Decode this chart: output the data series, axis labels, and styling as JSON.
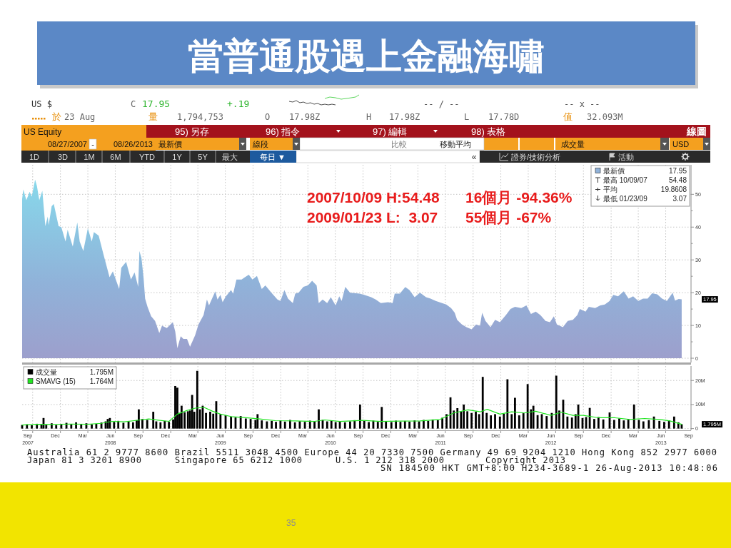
{
  "chart_data": [
    {
      "type": "other",
      "title": "當普通股遇上金融海嘯",
      "annotations": [
        "US $",
        "C",
        "17.95",
        "+.19",
        "-- / --",
        "-- x --",
        "於",
        "23 Aug",
        "量",
        "1,794,753",
        "O",
        "17.98Z",
        "H",
        "17.98Z",
        "L",
        "17.78D",
        "值",
        "32.093M",
        "US Equity",
        "95) 另存",
        "96) 指令",
        "97) 編輯",
        "98) 表格",
        "線圖",
        "08/27/2007",
        "-",
        "08/26/2013",
        "最新價",
        "線段",
        "比較",
        "移動平均",
        "成交量",
        "USD",
        "1D",
        "3D",
        "1M",
        "6M",
        "YTD",
        "1Y",
        "5Y",
        "最大",
        "每日 ▼",
        "«",
        "證券/技術分析",
        "活動"
      ]
    },
    {
      "type": "area",
      "x": [
        "2007-08-27",
        "2007-08-31",
        "2007-09-10",
        "2007-09-21",
        "2007-09-28",
        "2007-10-09",
        "2007-10-15",
        "2007-10-23",
        "2007-11-02",
        "2007-11-12",
        "2007-11-20",
        "2007-11-23",
        "2007-12-03",
        "2007-12-10",
        "2007-12-26",
        "2008-01-04",
        "2008-01-18",
        "2008-01-25",
        "2008-02-11",
        "2008-02-26",
        "2008-03-05",
        "2008-03-17",
        "2008-04-01",
        "2008-04-14",
        "2008-04-21",
        "2008-05-07",
        "2008-05-23",
        "2008-06-12",
        "2008-06-23",
        "2008-07-14",
        "2008-07-21",
        "2008-08-06",
        "2008-08-22",
        "2008-09-03",
        "2008-09-15",
        "2008-09-19",
        "2008-09-26",
        "2008-10-03",
        "2008-10-08",
        "2008-10-16",
        "2008-10-28",
        "2008-11-10",
        "2008-11-24",
        "2008-12-03",
        "2008-12-19",
        "2009-01-08",
        "2009-01-16",
        "2009-01-23",
        "2009-02-03",
        "2009-02-12",
        "2009-02-24",
        "2009-03-06",
        "2009-03-23",
        "2009-04-03",
        "2009-04-20",
        "2009-05-01",
        "2009-05-08",
        "2009-05-18",
        "2009-05-29",
        "2009-06-05",
        "2009-06-15",
        "2009-06-22",
        "2009-07-03",
        "2009-07-20",
        "2009-07-27",
        "2009-08-07",
        "2009-08-24",
        "2009-09-04",
        "2009-09-17",
        "2009-09-29",
        "2009-10-14",
        "2009-10-30",
        "2009-11-11",
        "2009-12-01",
        "2009-12-21",
        "2009-12-31",
        "2010-01-13",
        "2010-01-25",
        "2010-02-10",
        "2010-02-18",
        "2010-03-01",
        "2010-03-17",
        "2010-04-01",
        "2010-04-15",
        "2010-04-30",
        "2010-05-07",
        "2010-05-20",
        "2010-06-04",
        "2010-06-16",
        "2010-07-02",
        "2010-07-14",
        "2010-07-22",
        "2010-08-03",
        "2010-08-19",
        "2010-09-20",
        "2010-10-05",
        "2010-10-28",
        "2010-11-12",
        "2010-11-29",
        "2010-12-23",
        "2011-01-07",
        "2011-01-14",
        "2011-01-31",
        "2011-02-18",
        "2011-03-04",
        "2011-03-21",
        "2011-04-08",
        "2011-04-28",
        "2011-05-13",
        "2011-05-30",
        "2011-06-20",
        "2011-07-04",
        "2011-07-20",
        "2011-08-01",
        "2011-08-09",
        "2011-08-25",
        "2011-09-09",
        "2011-09-26",
        "2011-10-11",
        "2011-10-24",
        "2011-10-31",
        "2011-11-11",
        "2011-11-28",
        "2011-12-13",
        "2011-12-29",
        "2012-01-18",
        "2012-02-02",
        "2012-02-17",
        "2012-03-09",
        "2012-03-26",
        "2012-04-10",
        "2012-04-26",
        "2012-05-11",
        "2012-05-28",
        "2012-06-12",
        "2012-06-25",
        "2012-07-05",
        "2012-07-25",
        "2012-08-10",
        "2012-08-27",
        "2012-09-11",
        "2012-09-19",
        "2012-10-08",
        "2012-10-19",
        "2012-11-09",
        "2012-11-26",
        "2012-12-11",
        "2012-12-27",
        "2013-01-08",
        "2013-01-24",
        "2013-02-12",
        "2013-02-28",
        "2013-03-15",
        "2013-04-01",
        "2013-04-17",
        "2013-05-02",
        "2013-05-17",
        "2013-06-03",
        "2013-06-19",
        "2013-07-05",
        "2013-07-24",
        "2013-08-01",
        "2013-08-13",
        "2013-08-23"
      ],
      "series": [
        {
          "name": "最新價",
          "color": "#90b2d9",
          "values": [
            48.6,
            51.5,
            48.2,
            50.8,
            49.3,
            54.48,
            52.6,
            48.2,
            51.1,
            40.3,
            43.2,
            40.6,
            46.4,
            47.1,
            40.3,
            40.0,
            35.6,
            39.2,
            34.1,
            41.4,
            35.6,
            32.7,
            39.6,
            35.6,
            38.5,
            37.4,
            31.6,
            24.7,
            26.5,
            21.1,
            27.6,
            29.4,
            24.0,
            26.2,
            21.8,
            32.7,
            30.5,
            24.4,
            18.2,
            15.7,
            12.8,
            11.4,
            7.7,
            9.9,
            9.2,
            11.0,
            8.1,
            3.07,
            6.7,
            5.9,
            5.9,
            3.5,
            7.0,
            10.3,
            13.2,
            17.9,
            16.1,
            18.2,
            20.4,
            17.9,
            19.3,
            17.1,
            18.9,
            20.8,
            19.7,
            24.0,
            24.0,
            24.7,
            25.5,
            24.0,
            25.1,
            21.1,
            22.2,
            20.0,
            17.9,
            17.5,
            20.8,
            18.2,
            16.8,
            19.7,
            20.0,
            21.8,
            22.2,
            23.6,
            22.2,
            16.8,
            17.9,
            16.8,
            18.6,
            16.1,
            18.9,
            17.5,
            21.8,
            20.0,
            19.7,
            19.3,
            18.6,
            17.9,
            16.8,
            17.1,
            16.8,
            19.7,
            19.7,
            21.7,
            20.8,
            18.6,
            20.0,
            18.6,
            18.2,
            17.5,
            16.8,
            16.4,
            15.3,
            13.9,
            11.7,
            10.3,
            9.5,
            8.8,
            10.3,
            9.9,
            13.9,
            11.4,
            9.5,
            11.7,
            11.0,
            13.2,
            15.0,
            15.7,
            15.3,
            16.1,
            13.5,
            14.2,
            13.2,
            11.4,
            11.0,
            12.8,
            10.3,
            9.5,
            11.4,
            11.7,
            13.2,
            15.0,
            14.2,
            15.7,
            15.3,
            16.1,
            16.4,
            17.5,
            19.3,
            18.9,
            20.4,
            18.2,
            18.9,
            17.5,
            18.2,
            18.2,
            19.8,
            19.5,
            18.2,
            17.5,
            20.0,
            17.6,
            18.1,
            17.95
          ]
        }
      ],
      "xlim": [
        "2007-08-27",
        "2013-09-23"
      ],
      "ylim": [
        -1.3,
        59
      ],
      "xticks": [
        {
          "value": "2007-10-01",
          "label": null
        },
        {
          "value": "2008-01-01",
          "label": null
        },
        {
          "value": "2008-04-01",
          "label": null
        },
        {
          "value": "2008-07-01",
          "label": null
        },
        {
          "value": "2008-10-01",
          "label": null
        },
        {
          "value": "2009-01-01",
          "label": null
        },
        {
          "value": "2009-04-01",
          "label": null
        },
        {
          "value": "2009-07-01",
          "label": null
        },
        {
          "value": "2009-10-01",
          "label": null
        },
        {
          "value": "2010-01-01",
          "label": null
        },
        {
          "value": "2010-04-01",
          "label": null
        },
        {
          "value": "2010-07-01",
          "label": null
        },
        {
          "value": "2010-10-01",
          "label": null
        },
        {
          "value": "2011-01-01",
          "label": null
        },
        {
          "value": "2011-04-01",
          "label": null
        },
        {
          "value": "2011-07-01",
          "label": null
        },
        {
          "value": "2011-10-01",
          "label": null
        },
        {
          "value": "2012-01-01",
          "label": null
        },
        {
          "value": "2012-04-01",
          "label": null
        },
        {
          "value": "2012-07-01",
          "label": null
        },
        {
          "value": "2012-10-01",
          "label": null
        },
        {
          "value": "2013-01-01",
          "label": null
        },
        {
          "value": "2013-04-01",
          "label": null
        },
        {
          "value": "2013-07-01",
          "label": null
        }
      ],
      "yticks": [
        0,
        {
          "value": 5,
          "label": null
        },
        10,
        {
          "value": 15,
          "label": null
        },
        20,
        {
          "value": 25,
          "label": null
        },
        30,
        {
          "value": 35,
          "label": null
        },
        40,
        {
          "value": 45,
          "label": null
        },
        50
      ],
      "grid": true,
      "legend": "top right",
      "tick_labels": "y",
      "annotations": [
        "2007/10/09 H:54.48",
        "16個月 -94.36%",
        "2009/01/23 L:  3.07",
        "55個月 -67%",
        "17.95",
        "最高 10/09/07",
        "54.48",
        "平均",
        "19.8608",
        "最低 01/23/09",
        "3.07",
        "17.95"
      ]
    },
    {
      "type": "bar",
      "x": [
        "2007-08-27",
        "2007-09-12",
        "2007-09-28",
        "2007-10-15",
        "2007-10-30",
        "2007-11-06",
        "2007-11-15",
        "2007-12-03",
        "2007-12-18",
        "2008-01-04",
        "2008-01-21",
        "2008-02-06",
        "2008-02-22",
        "2008-03-10",
        "2008-03-27",
        "2008-04-14",
        "2008-04-29",
        "2008-05-16",
        "2008-05-30",
        "2008-06-06",
        "2008-06-13",
        "2008-06-27",
        "2008-07-11",
        "2008-07-28",
        "2008-08-14",
        "2008-08-29",
        "2008-09-10",
        "2008-09-17",
        "2008-09-29",
        "2008-10-15",
        "2008-11-04",
        "2008-11-14",
        "2008-11-28",
        "2008-12-12",
        "2008-12-26",
        "2009-01-09",
        "2009-01-16",
        "2009-01-23",
        "2009-01-30",
        "2009-02-06",
        "2009-02-16",
        "2009-02-27",
        "2009-03-06",
        "2009-03-13",
        "2009-03-20",
        "2009-03-30",
        "2009-04-08",
        "2009-04-17",
        "2009-04-28",
        "2009-05-12",
        "2009-05-22",
        "2009-06-01",
        "2009-06-15",
        "2009-07-02",
        "2009-07-20",
        "2009-08-04",
        "2009-08-21",
        "2009-09-07",
        "2009-09-23",
        "2009-10-09",
        "2009-10-16",
        "2009-10-30",
        "2009-11-16",
        "2009-12-02",
        "2009-12-16",
        "2009-12-31",
        "2010-01-15",
        "2010-02-01",
        "2010-02-17",
        "2010-03-05",
        "2010-03-22",
        "2010-04-08",
        "2010-04-23",
        "2010-05-07",
        "2010-05-20",
        "2010-06-04",
        "2010-06-18",
        "2010-07-02",
        "2010-07-16",
        "2010-08-02",
        "2010-08-19",
        "2010-09-03",
        "2010-09-21",
        "2010-10-05",
        "2010-10-20",
        "2010-11-04",
        "2010-11-19",
        "2010-12-02",
        "2010-12-16",
        "2011-01-03",
        "2011-01-18",
        "2011-02-02",
        "2011-02-17",
        "2011-03-04",
        "2011-03-21",
        "2011-04-05",
        "2011-04-20",
        "2011-05-05",
        "2011-05-20",
        "2011-06-06",
        "2011-06-21",
        "2011-07-05",
        "2011-07-18",
        "2011-07-29",
        "2011-08-10",
        "2011-08-22",
        "2011-08-31",
        "2011-09-12",
        "2011-09-26",
        "2011-10-10",
        "2011-10-21",
        "2011-11-02",
        "2011-11-15",
        "2011-11-29",
        "2011-12-13",
        "2011-12-29",
        "2012-01-11",
        "2012-01-23",
        "2012-02-06",
        "2012-02-17",
        "2012-03-02",
        "2012-03-16",
        "2012-03-30",
        "2012-04-10",
        "2012-04-18",
        "2012-05-02",
        "2012-05-16",
        "2012-06-01",
        "2012-06-18",
        "2012-07-03",
        "2012-07-13",
        "2012-07-26",
        "2012-08-09",
        "2012-08-24",
        "2012-09-05",
        "2012-09-14",
        "2012-09-28",
        "2012-10-10",
        "2012-10-22",
        "2012-11-06",
        "2012-11-20",
        "2012-12-06",
        "2012-12-27",
        "2013-01-11",
        "2013-01-28",
        "2013-02-12",
        "2013-02-27",
        "2013-03-18",
        "2013-04-03",
        "2013-04-18",
        "2013-05-06",
        "2013-05-23",
        "2013-06-10",
        "2013-06-26",
        "2013-07-12",
        "2013-07-29",
        "2013-08-12",
        "2013-08-23"
      ],
      "series": [
        {
          "name": "成交量",
          "color": "#000000",
          "values": [
            1.5,
            1.8,
            1.4,
            2.0,
            1.7,
            4.4,
            1.6,
            2.2,
            1.5,
            1.9,
            2.4,
            1.7,
            2.6,
            1.8,
            2.2,
            1.7,
            2.0,
            2.5,
            3.0,
            4.0,
            4.4,
            2.8,
            3.2,
            2.4,
            2.9,
            2.6,
            3.5,
            8.0,
            4.0,
            3.6,
            7.0,
            3.0,
            2.6,
            3.2,
            2.8,
            3.8,
            17.7,
            17.0,
            6.5,
            9.5,
            6.8,
            7.2,
            7.5,
            14.0,
            7.0,
            24.0,
            8.0,
            9.5,
            6.5,
            7.0,
            6.2,
            11.4,
            6.0,
            5.5,
            5.0,
            4.6,
            5.2,
            4.2,
            4.0,
            3.6,
            6.0,
            3.4,
            3.0,
            3.2,
            2.8,
            3.4,
            2.9,
            3.6,
            2.6,
            3.1,
            2.8,
            3.3,
            3.0,
            8.0,
            3.6,
            3.0,
            3.4,
            2.7,
            3.1,
            2.6,
            3.0,
            3.5,
            10.0,
            3.2,
            2.7,
            3.3,
            2.8,
            9.0,
            3.0,
            2.7,
            3.3,
            2.8,
            3.2,
            2.9,
            3.4,
            3.0,
            3.6,
            3.2,
            3.8,
            3.5,
            4.5,
            6.0,
            13.0,
            7.5,
            8.5,
            7.0,
            10.0,
            7.2,
            6.5,
            7.0,
            6.0,
            21.5,
            6.5,
            5.5,
            6.0,
            5.0,
            6.2,
            20.5,
            6.0,
            12.8,
            5.5,
            6.4,
            18.5,
            8.0,
            9.5,
            5.6,
            6.0,
            5.2,
            6.5,
            22.0,
            7.5,
            12.0,
            5.0,
            4.6,
            6.0,
            10.0,
            4.4,
            4.8,
            8.6,
            4.0,
            4.8,
            3.8,
            6.7,
            3.6,
            4.2,
            3.4,
            3.9,
            10.0,
            3.6,
            3.0,
            3.5,
            5.0,
            3.2,
            2.8,
            3.4,
            5.0,
            2.6,
            1.795
          ]
        },
        {
          "name": "SMAVG (15)",
          "type": "line",
          "color": "#22e622",
          "x": [
            "2007-08-27",
            "2007-10-15",
            "2007-12-03",
            "2008-02-01",
            "2008-04-01",
            "2008-05-16",
            "2008-06-20",
            "2008-08-01",
            "2008-09-22",
            "2008-10-20",
            "2008-11-21",
            "2008-12-26",
            "2009-01-23",
            "2009-02-23",
            "2009-03-23",
            "2009-04-22",
            "2009-05-20",
            "2009-06-15",
            "2009-07-20",
            "2009-09-07",
            "2009-10-23",
            "2009-12-14",
            "2010-02-17",
            "2010-04-23",
            "2010-05-27",
            "2010-07-16",
            "2010-09-30",
            "2010-11-29",
            "2011-01-31",
            "2011-04-08",
            "2011-06-13",
            "2011-07-29",
            "2011-09-14",
            "2011-10-26",
            "2011-11-17",
            "2011-12-29",
            "2012-02-06",
            "2012-03-19",
            "2012-04-26",
            "2012-06-15",
            "2012-07-20",
            "2012-08-27",
            "2012-10-01",
            "2012-11-20",
            "2013-01-14",
            "2013-03-04",
            "2013-04-22",
            "2013-06-12",
            "2013-07-15",
            "2013-08-23"
          ],
          "values": [
            1.5,
            1.8,
            1.7,
            1.9,
            1.8,
            2.2,
            3.0,
            2.8,
            3.6,
            4.0,
            3.5,
            3.0,
            6.0,
            7.5,
            8.5,
            8.8,
            7.2,
            6.0,
            5.0,
            4.5,
            4.0,
            3.3,
            3.2,
            3.0,
            3.6,
            3.0,
            3.4,
            3.0,
            3.1,
            3.2,
            3.8,
            6.5,
            7.8,
            7.0,
            8.0,
            6.0,
            7.0,
            6.5,
            7.2,
            5.5,
            6.8,
            5.5,
            5.5,
            4.5,
            4.5,
            3.8,
            4.2,
            3.8,
            3.2,
            1.764
          ]
        }
      ],
      "xlim": [
        "2007-08-27",
        "2013-09-23"
      ],
      "ylim": [
        -0.7,
        26
      ],
      "xticks": [
        {
          "value": "2007-09-15",
          "label": "Sep\n2007"
        },
        {
          "value": "2007-10-01",
          "label": null
        },
        {
          "value": "2007-12-15",
          "label": "Dec"
        },
        {
          "value": "2008-01-01",
          "label": null
        },
        {
          "value": "2008-03-15",
          "label": "Mar"
        },
        {
          "value": "2008-04-01",
          "label": null
        },
        {
          "value": "2008-06-15",
          "label": "Jun\n2008"
        },
        {
          "value": "2008-07-01",
          "label": null
        },
        {
          "value": "2008-09-15",
          "label": "Sep"
        },
        {
          "value": "2008-10-01",
          "label": null
        },
        {
          "value": "2008-12-15",
          "label": "Dec"
        },
        {
          "value": "2009-01-01",
          "label": null
        },
        {
          "value": "2009-03-15",
          "label": "Mar"
        },
        {
          "value": "2009-04-01",
          "label": null
        },
        {
          "value": "2009-06-15",
          "label": "Jun\n2009"
        },
        {
          "value": "2009-07-01",
          "label": null
        },
        {
          "value": "2009-09-15",
          "label": "Sep"
        },
        {
          "value": "2009-10-01",
          "label": null
        },
        {
          "value": "2009-12-15",
          "label": "Dec"
        },
        {
          "value": "2010-01-01",
          "label": null
        },
        {
          "value": "2010-03-15",
          "label": "Mar"
        },
        {
          "value": "2010-04-01",
          "label": null
        },
        {
          "value": "2010-06-15",
          "label": "Jun\n2010"
        },
        {
          "value": "2010-07-01",
          "label": null
        },
        {
          "value": "2010-09-15",
          "label": "Sep"
        },
        {
          "value": "2010-10-01",
          "label": null
        },
        {
          "value": "2010-12-15",
          "label": "Dec"
        },
        {
          "value": "2011-01-01",
          "label": null
        },
        {
          "value": "2011-03-15",
          "label": "Mar"
        },
        {
          "value": "2011-04-01",
          "label": null
        },
        {
          "value": "2011-06-15",
          "label": "Jun\n2011"
        },
        {
          "value": "2011-07-01",
          "label": null
        },
        {
          "value": "2011-09-15",
          "label": "Sep"
        },
        {
          "value": "2011-10-01",
          "label": null
        },
        {
          "value": "2011-12-15",
          "label": "Dec"
        },
        {
          "value": "2012-01-01",
          "label": null
        },
        {
          "value": "2012-03-15",
          "label": "Mar"
        },
        {
          "value": "2012-04-01",
          "label": null
        },
        {
          "value": "2012-06-15",
          "label": "Jun\n2012"
        },
        {
          "value": "2012-07-01",
          "label": null
        },
        {
          "value": "2012-09-15",
          "label": "Sep"
        },
        {
          "value": "2012-10-01",
          "label": null
        },
        {
          "value": "2012-12-15",
          "label": "Dec"
        },
        {
          "value": "2013-01-01",
          "label": null
        },
        {
          "value": "2013-03-15",
          "label": "Mar"
        },
        {
          "value": "2013-04-01",
          "label": null
        },
        {
          "value": "2013-06-15",
          "label": "Jun\n2013"
        },
        {
          "value": "2013-07-01",
          "label": null
        },
        {
          "value": "2013-09-15",
          "label": "Sep"
        }
      ],
      "yticks": [
        0,
        {
          "value": 10,
          "label": "10M"
        },
        {
          "value": 20,
          "label": "20M"
        }
      ],
      "grid": true,
      "legend": "top left",
      "annotations": [
        "1.795M",
        "1.764M",
        "1.795M",
        "Australia 61 2 9777 8600 Brazil 5511 3048 4500 Europe 44 20 7330 7500 Germany 49 69 9204 1210 Hong Kong 852 2977 6000",
        "Japan 81 3 3201 8900",
        "Singapore 65 6212 1000",
        "U.S. 1 212 318 2000",
        "Copyright 2013",
        "SN 184500 HKT GMT+8:00 H234-3689-1 26-Aug-2013 10:48:06",
        "35"
      ]
    }
  ]
}
